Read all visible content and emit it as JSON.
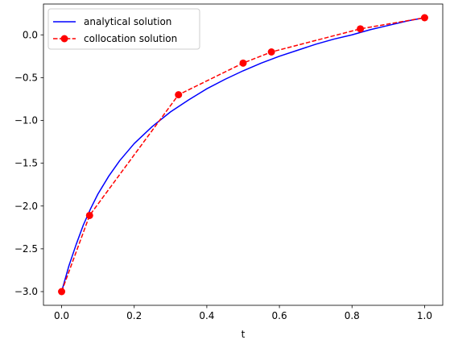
{
  "chart_data": {
    "type": "line",
    "xlabel": "t",
    "ylabel": "",
    "title": "",
    "xlim": [
      -0.05,
      1.05
    ],
    "ylim": [
      -3.16,
      0.36
    ],
    "xticks": [
      0.0,
      0.2,
      0.4,
      0.6,
      0.8,
      1.0
    ],
    "yticks": [
      0.0,
      -0.5,
      -1.0,
      -1.5,
      -2.0,
      -2.5,
      -3.0
    ],
    "xtick_labels": [
      "0.0",
      "0.2",
      "0.4",
      "0.6",
      "0.8",
      "1.0"
    ],
    "ytick_labels": [
      "0.0",
      "−0.5",
      "−1.0",
      "−1.5",
      "−2.0",
      "−2.5",
      "−3.0"
    ],
    "grid": false,
    "legend_position": "upper-left",
    "series": [
      {
        "name": "analytical solution",
        "style": "solid",
        "color": "#0000ff",
        "x": [
          0.0,
          0.02,
          0.04,
          0.06,
          0.08,
          0.1,
          0.13,
          0.16,
          0.2,
          0.25,
          0.3,
          0.35,
          0.4,
          0.45,
          0.5,
          0.55,
          0.6,
          0.65,
          0.7,
          0.75,
          0.8,
          0.85,
          0.9,
          0.95,
          1.0
        ],
        "y": [
          -3.0,
          -2.7,
          -2.45,
          -2.22,
          -2.03,
          -1.86,
          -1.65,
          -1.47,
          -1.27,
          -1.07,
          -0.9,
          -0.76,
          -0.63,
          -0.52,
          -0.42,
          -0.33,
          -0.25,
          -0.18,
          -0.11,
          -0.05,
          0.0,
          0.06,
          0.11,
          0.16,
          0.2
        ]
      },
      {
        "name": "collocation solution",
        "style": "dashed",
        "marker": "circle",
        "color": "#ff0000",
        "x": [
          0.0,
          0.077,
          0.322,
          0.5,
          0.578,
          0.823,
          1.0
        ],
        "y": [
          -3.0,
          -2.11,
          -0.7,
          -0.33,
          -0.2,
          0.07,
          0.2
        ]
      }
    ]
  }
}
